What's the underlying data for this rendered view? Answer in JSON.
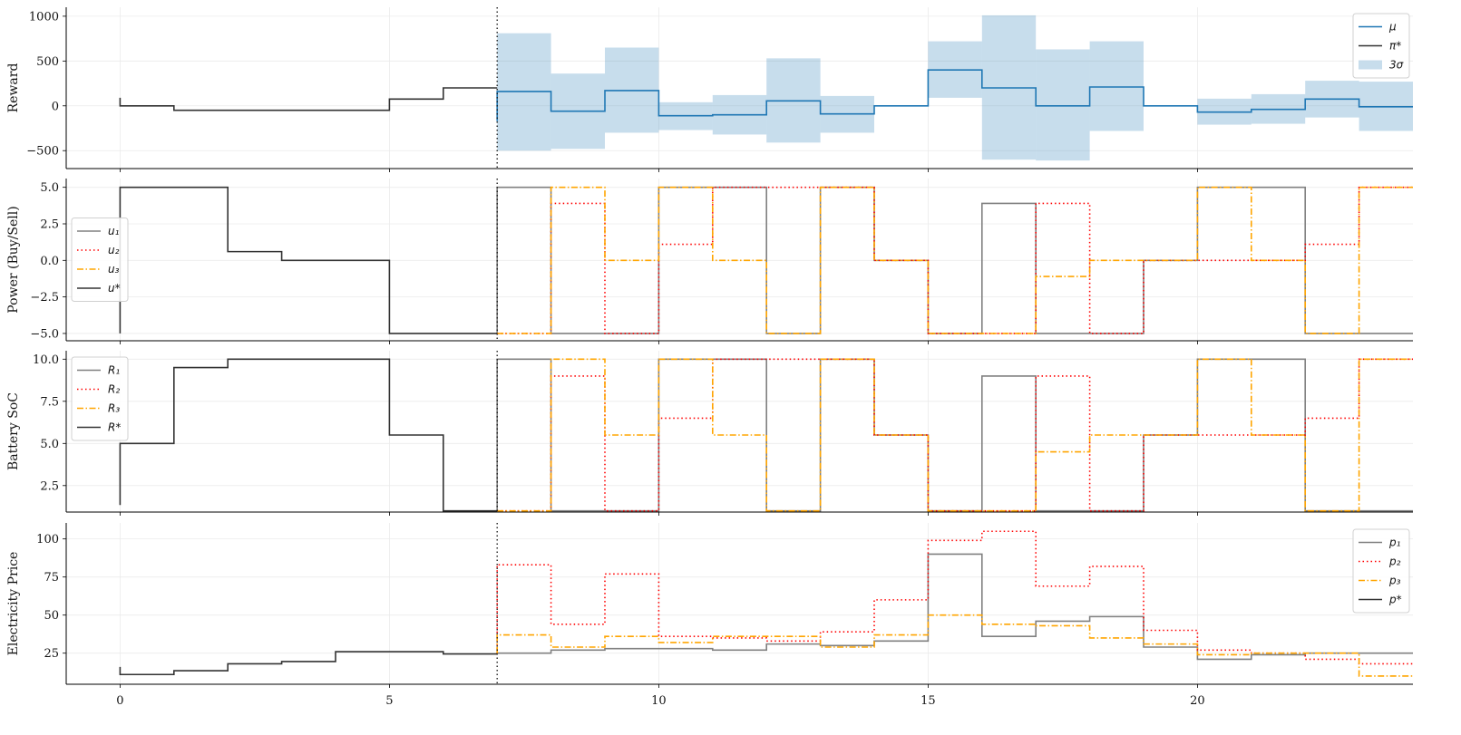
{
  "chart_data": [
    {
      "type": "line",
      "step": "post",
      "ylabel": "Reward",
      "xlim": [
        -1,
        24
      ],
      "ylim": [
        -700,
        1100
      ],
      "xticks": [
        0,
        5,
        10,
        15,
        20
      ],
      "show_xtick_labels": false,
      "yticks": [
        -500,
        0,
        500,
        1000
      ],
      "ytick_labels": [
        "−500",
        "0",
        "500",
        "1000"
      ],
      "grid": true,
      "vline_x": 7,
      "legend": "top-right",
      "bands": [
        {
          "name": "3σ",
          "color": "#1f77b4",
          "opacity": 0.25,
          "x_start": 7,
          "low": [
            -500,
            -480,
            -300,
            -270,
            -320,
            -410,
            -300,
            0,
            90,
            -600,
            -610,
            -280,
            0,
            -210,
            -200,
            -130,
            -280
          ],
          "high": [
            810,
            360,
            650,
            40,
            120,
            530,
            110,
            0,
            720,
            1010,
            630,
            720,
            0,
            80,
            130,
            280,
            270
          ]
        }
      ],
      "series": [
        {
          "name": "μ",
          "color": "#1f77b4",
          "style": "solid",
          "x_start": 7,
          "initial": -170,
          "values": [
            160,
            -60,
            170,
            -110,
            -100,
            55,
            -90,
            0,
            400,
            200,
            0,
            210,
            0,
            -70,
            -40,
            75,
            -10
          ]
        },
        {
          "name": "π*",
          "color": "#333333",
          "style": "solid",
          "x_start": 0,
          "initial": 90,
          "values": [
            0,
            -50,
            -50,
            -50,
            -50,
            75,
            200
          ]
        }
      ],
      "legend_order": [
        "μ",
        "π*",
        "3σ"
      ]
    },
    {
      "type": "line",
      "step": "post",
      "ylabel": "Power (Buy/Sell)",
      "xlim": [
        -1,
        24
      ],
      "ylim": [
        -5.5,
        5.6
      ],
      "xticks": [
        0,
        5,
        10,
        15,
        20
      ],
      "show_xtick_labels": false,
      "yticks": [
        -5,
        -2.5,
        0,
        2.5,
        5
      ],
      "ytick_labels": [
        "−5.0",
        "−2.5",
        "0.0",
        "2.5",
        "5.0"
      ],
      "grid": true,
      "vline_x": 7,
      "legend": "center-left",
      "series": [
        {
          "name": "u₁",
          "color": "#808080",
          "style": "solid",
          "x_start": 7,
          "initial": -5,
          "values": [
            5,
            -5,
            -5,
            5,
            5,
            -5,
            5,
            0,
            -5,
            3.9,
            -5,
            -5,
            0,
            5,
            5,
            -5,
            -5
          ]
        },
        {
          "name": "u₂",
          "color": "#ff0000",
          "style": "dotted",
          "x_start": 7,
          "initial": -5,
          "values": [
            -5,
            3.9,
            -5,
            1.1,
            5,
            5,
            5,
            0,
            -5,
            -5,
            3.9,
            -5,
            0,
            0,
            0,
            1.1,
            5
          ]
        },
        {
          "name": "u₃",
          "color": "#ffa500",
          "style": "dashdot",
          "x_start": 7,
          "initial": -5,
          "values": [
            -5,
            5,
            0,
            5,
            0,
            -5,
            5,
            0,
            -5,
            -5,
            -1.1,
            0,
            0,
            5,
            0,
            -5,
            5
          ]
        },
        {
          "name": "u*",
          "color": "#333333",
          "style": "solid",
          "x_start": 0,
          "initial": -5,
          "values": [
            5,
            5,
            0.6,
            0,
            0,
            -5,
            -5
          ]
        }
      ]
    },
    {
      "type": "line",
      "step": "post",
      "ylabel": "Battery SoC",
      "xlim": [
        -1,
        24
      ],
      "ylim": [
        0.93,
        10.5
      ],
      "xticks": [
        0,
        5,
        10,
        15,
        20
      ],
      "show_xtick_labels": false,
      "yticks": [
        2.5,
        5,
        7.5,
        10
      ],
      "ytick_labels": [
        "2.5",
        "5.0",
        "7.5",
        "10.0"
      ],
      "grid": true,
      "vline_x": 7,
      "legend": "top-left",
      "series": [
        {
          "name": "R₁",
          "color": "#808080",
          "style": "solid",
          "x_start": 7,
          "initial": 1,
          "values": [
            10,
            1,
            1,
            10,
            10,
            1,
            10,
            5.5,
            1,
            9,
            1,
            1,
            5.5,
            10,
            10,
            1,
            1
          ]
        },
        {
          "name": "R₂",
          "color": "#ff0000",
          "style": "dotted",
          "x_start": 7,
          "initial": 1,
          "values": [
            1,
            9,
            1,
            6.5,
            10,
            10,
            10,
            5.5,
            1,
            1,
            9,
            1,
            5.5,
            5.5,
            5.5,
            6.5,
            10
          ]
        },
        {
          "name": "R₃",
          "color": "#ffa500",
          "style": "dashdot",
          "x_start": 7,
          "initial": 1,
          "values": [
            1,
            10,
            5.5,
            10,
            5.5,
            1,
            10,
            5.5,
            1,
            1,
            4.5,
            5.5,
            5.5,
            10,
            5.5,
            1,
            10
          ]
        },
        {
          "name": "R*",
          "color": "#333333",
          "style": "solid",
          "x_start": 0,
          "initial": 1.35,
          "values": [
            5,
            9.5,
            10,
            10,
            10,
            5.5,
            1
          ]
        }
      ]
    },
    {
      "type": "line",
      "step": "post",
      "ylabel": "Electricity Price",
      "xlim": [
        -1,
        24
      ],
      "ylim": [
        4.6,
        110.5
      ],
      "xticks": [
        0,
        5,
        10,
        15,
        20
      ],
      "xtick_labels": [
        "0",
        "5",
        "10",
        "15",
        "20"
      ],
      "show_xtick_labels": true,
      "yticks": [
        25,
        50,
        75,
        100
      ],
      "ytick_labels": [
        "25",
        "50",
        "75",
        "100"
      ],
      "grid": true,
      "vline_x": 7,
      "legend": "top-right",
      "series": [
        {
          "name": "p₁",
          "color": "#808080",
          "style": "solid",
          "x_start": 7,
          "initial": 25,
          "values": [
            25,
            27,
            28,
            28,
            27,
            31,
            30,
            33,
            90,
            36,
            46,
            49,
            29,
            21,
            24,
            25,
            25
          ]
        },
        {
          "name": "p₂",
          "color": "#ff0000",
          "style": "dotted",
          "x_start": 7,
          "initial": 25,
          "values": [
            83,
            44,
            77,
            36,
            35,
            33,
            39,
            60,
            99,
            105,
            69,
            82,
            40,
            27,
            25,
            21,
            18
          ]
        },
        {
          "name": "p₃",
          "color": "#ffa500",
          "style": "dashdot",
          "x_start": 7,
          "initial": 25,
          "values": [
            37,
            29,
            36,
            32,
            36,
            36,
            29,
            37,
            50,
            44,
            43,
            35,
            31,
            24,
            25,
            25,
            10
          ]
        },
        {
          "name": "p*",
          "color": "#333333",
          "style": "solid",
          "x_start": 0,
          "initial": 16,
          "values": [
            11,
            13.5,
            18,
            19.5,
            26,
            26,
            24.5
          ]
        }
      ]
    }
  ]
}
